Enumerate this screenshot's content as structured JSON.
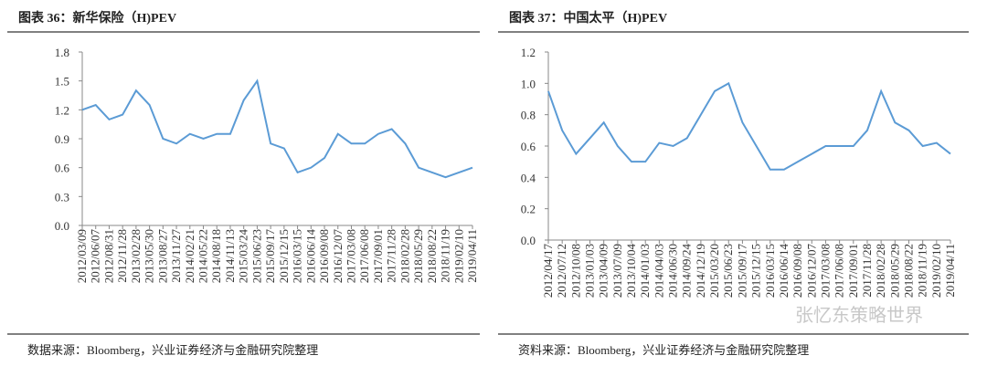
{
  "chart_data": [
    {
      "type": "line",
      "title": "图表 36：新华保险（H)PEV",
      "source": "数据来源：Bloomberg，兴业证券经济与金融研究院整理",
      "categories": [
        "2012/03/09",
        "2012/06/07",
        "2012/08/31",
        "2012/11/28",
        "2013/02/28",
        "2013/05/30",
        "2013/08/27",
        "2013/11/27",
        "2014/02/21",
        "2014/05/22",
        "2014/08/18",
        "2014/11/13",
        "2015/03/24",
        "2015/06/23",
        "2015/09/17",
        "2015/12/15",
        "2016/03/15",
        "2016/06/14",
        "2016/09/08",
        "2016/12/07",
        "2017/03/08",
        "2017/06/08",
        "2017/09/01",
        "2017/11/28",
        "2018/02/28",
        "2018/05/29",
        "2018/08/22",
        "2018/11/19",
        "2019/02/10",
        "2019/04/11"
      ],
      "series": [
        {
          "color": "#5b9bd5",
          "values": [
            1.2,
            1.25,
            1.1,
            1.15,
            1.4,
            1.25,
            0.9,
            0.85,
            0.95,
            0.9,
            0.95,
            0.95,
            1.3,
            1.5,
            0.85,
            0.8,
            0.55,
            0.6,
            0.7,
            0.95,
            0.85,
            0.85,
            0.95,
            1.0,
            0.85,
            0.6,
            0.55,
            0.5,
            0.55,
            0.6
          ]
        }
      ],
      "ylim": [
        0,
        1.8
      ],
      "yticks": [
        {
          "value": 0,
          "label": "0.0"
        },
        0.3,
        0.6,
        0.9,
        1.2,
        1.5,
        1.8
      ]
    },
    {
      "type": "line",
      "title": "图表 37：中国太平（H)PEV",
      "source": "资料来源：Bloomberg，兴业证券经济与金融研究院整理",
      "categories": [
        "2012/04/17",
        "2012/07/12",
        "2012/10/08",
        "2013/01/03",
        "2013/04/09",
        "2013/07/09",
        "2013/10/04",
        "2014/01/03",
        "2014/04/03",
        "2014/06/30",
        "2014/09/24",
        "2014/12/19",
        "2015/03/20",
        "2015/06/23",
        "2015/09/17",
        "2015/12/15",
        "2016/03/15",
        "2016/06/14",
        "2016/09/08",
        "2016/12/07",
        "2017/03/08",
        "2017/06/08",
        "2017/09/01",
        "2017/11/28",
        "2018/02/28",
        "2018/05/29",
        "2018/08/22",
        "2018/11/19",
        "2019/02/10",
        "2019/04/11"
      ],
      "series": [
        {
          "color": "#5b9bd5",
          "values": [
            0.95,
            0.7,
            0.55,
            0.65,
            0.75,
            0.6,
            0.5,
            0.5,
            0.62,
            0.6,
            0.65,
            0.8,
            0.95,
            1.0,
            0.75,
            0.6,
            0.45,
            0.45,
            0.5,
            0.55,
            0.6,
            0.6,
            0.6,
            0.7,
            0.95,
            0.75,
            0.7,
            0.6,
            0.62,
            0.55
          ]
        }
      ],
      "ylim": [
        0,
        1.2
      ],
      "yticks": [
        {
          "value": 0,
          "label": "0.0"
        },
        0.2,
        0.4,
        0.6,
        0.8,
        {
          "value": 1,
          "label": "1.0"
        },
        1.2
      ]
    }
  ],
  "watermark": "张忆东策略世界"
}
